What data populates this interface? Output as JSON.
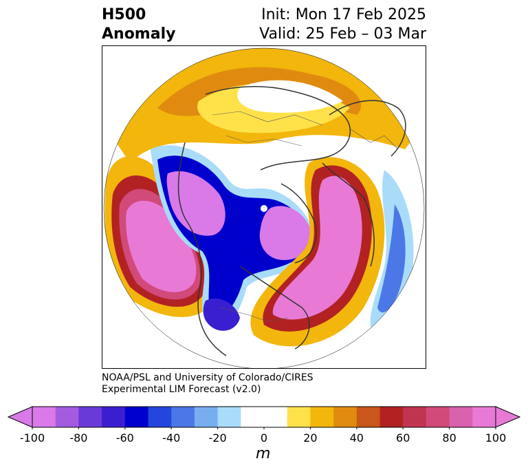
{
  "title": {
    "variable": "H500",
    "field": "Anomaly",
    "init": "Init: Mon 17 Feb 2025",
    "valid": "Valid: 25 Feb – 03 Mar"
  },
  "credit": {
    "line1": "NOAA/PSL and University of Colorado/CIRES",
    "line2": "Experimental LIM Forecast (v2.0)"
  },
  "colorbar": {
    "unit": "m",
    "ticks": [
      "-100",
      "-80",
      "-60",
      "-40",
      "-20",
      "0",
      "20",
      "40",
      "60",
      "80",
      "100"
    ],
    "colors": [
      "#d97ae8",
      "#a45be0",
      "#6a3ad9",
      "#3a1fd0",
      "#0000cd",
      "#2446dc",
      "#4b78e6",
      "#77aef0",
      "#a8dcf9",
      "#ffffff",
      "#ffffff",
      "#ffe24a",
      "#f2b60d",
      "#e08b10",
      "#c9561a",
      "#b22222",
      "#c13450",
      "#d14a7a",
      "#d862ae",
      "#e87ad6"
    ],
    "colors_meta": {
      "min": -100,
      "max": 100,
      "step": 10
    }
  }
}
